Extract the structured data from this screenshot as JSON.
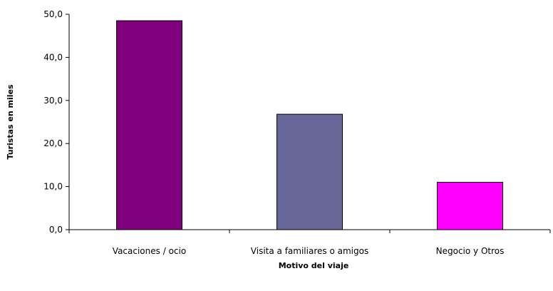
{
  "chart_data": {
    "type": "bar",
    "categories": [
      "Vacaciones / ocio",
      "Visita a familiares o amigos",
      "Negocio y Otros"
    ],
    "values": [
      48.5,
      26.8,
      11.0
    ],
    "bar_colors": [
      "#800080",
      "#666699",
      "#FF00FF"
    ],
    "ylim": [
      0,
      50
    ],
    "y_ticks": [
      "0,0",
      "10,0",
      "20,0",
      "30,0",
      "40,0",
      "50,0"
    ],
    "xlabel": "Motivo del viaje",
    "ylabel": "Turistas en miles",
    "grid": false,
    "legend": "none"
  }
}
